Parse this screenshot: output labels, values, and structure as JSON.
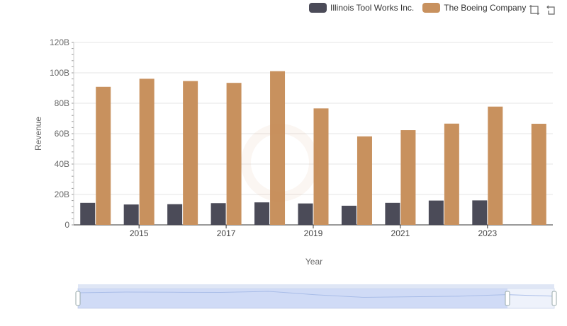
{
  "chart_data": {
    "type": "bar",
    "title": "",
    "xlabel": "Year",
    "ylabel": "Revenue",
    "ylim": [
      0,
      120
    ],
    "yticks": [
      "0",
      "20B",
      "40B",
      "60B",
      "80B",
      "100B",
      "120B"
    ],
    "x": [
      "2014",
      "2015",
      "2016",
      "2017",
      "2018",
      "2019",
      "2020",
      "2021",
      "2022",
      "2023",
      "2024"
    ],
    "xtick_labels": [
      "2015",
      "2017",
      "2019",
      "2021",
      "2023"
    ],
    "legend_position": "top-right",
    "grid": true,
    "series": [
      {
        "name": "Illinois Tool Works Inc.",
        "color": "#4b4b58",
        "values": [
          14.5,
          13.4,
          13.6,
          14.3,
          14.8,
          14.1,
          12.6,
          14.5,
          16.0,
          16.1,
          null
        ]
      },
      {
        "name": "The Boeing Company",
        "color": "#c8915e",
        "values": [
          90.8,
          96.1,
          94.6,
          93.4,
          101.1,
          76.6,
          58.2,
          62.3,
          66.6,
          77.8,
          66.5
        ]
      }
    ]
  },
  "toolbar": {
    "zoom_icon": "zoom-select-icon",
    "reset_icon": "zoom-reset-icon"
  }
}
